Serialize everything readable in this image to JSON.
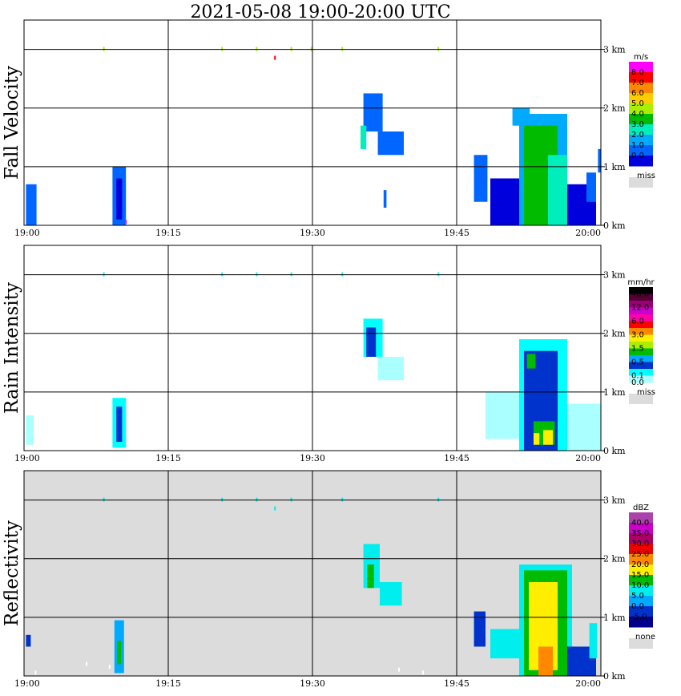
{
  "title": "2021-05-08   19:00-20:00 UTC",
  "chart_data": [
    {
      "type": "heatmap",
      "ylabel": "Fall Velocity",
      "background": "#ffffff",
      "x_ticks": [
        "19:00",
        "19:15",
        "19:30",
        "19:45",
        "20:00"
      ],
      "y_ticks": [
        "0 km",
        "1 km",
        "2 km",
        "3 km"
      ],
      "xlim_minutes": [
        0,
        60
      ],
      "ylim_km": [
        0,
        3.5
      ],
      "colorbar": {
        "unit": "m/s",
        "labels": [
          "8.0",
          "7.0",
          "6.0",
          "5.0",
          "4.0",
          "3.0",
          "2.0",
          "1.0",
          "0.0"
        ],
        "colors": [
          "#ff00ff",
          "#ff0000",
          "#ff8800",
          "#ffcc00",
          "#aaee00",
          "#00bb00",
          "#00eebb",
          "#00aaff",
          "#0066ff",
          "#0000dd"
        ],
        "missing_label": "miss",
        "missing_color": "#dcdcdc"
      },
      "echoes": [
        {
          "t0": 0.2,
          "t1": 1.3,
          "h0": 0.0,
          "h1": 0.7,
          "color": "#0066ff"
        },
        {
          "t0": 9.2,
          "t1": 10.6,
          "h0": 0.0,
          "h1": 1.0,
          "color": "#0066ff"
        },
        {
          "t0": 9.6,
          "t1": 10.2,
          "h0": 0.1,
          "h1": 0.8,
          "color": "#0000dd"
        },
        {
          "t0": 35.3,
          "t1": 37.3,
          "h0": 1.6,
          "h1": 2.25,
          "color": "#0066ff"
        },
        {
          "t0": 35.0,
          "t1": 35.6,
          "h0": 1.3,
          "h1": 1.7,
          "color": "#00eebb"
        },
        {
          "t0": 36.8,
          "t1": 39.5,
          "h0": 1.2,
          "h1": 1.6,
          "color": "#0066ff"
        },
        {
          "t0": 37.4,
          "t1": 37.7,
          "h0": 0.3,
          "h1": 0.6,
          "color": "#0066ff"
        },
        {
          "t0": 46.8,
          "t1": 48.2,
          "h0": 0.4,
          "h1": 1.2,
          "color": "#0066ff"
        },
        {
          "t0": 48.5,
          "t1": 53.5,
          "h0": 0.0,
          "h1": 0.8,
          "color": "#0000dd"
        },
        {
          "t0": 52.5,
          "t1": 59.5,
          "h0": 0.0,
          "h1": 0.7,
          "color": "#0000dd"
        },
        {
          "t0": 51.5,
          "t1": 56.5,
          "h0": 0.0,
          "h1": 1.9,
          "color": "#00aaff"
        },
        {
          "t0": 52.0,
          "t1": 55.5,
          "h0": 0.0,
          "h1": 1.7,
          "color": "#00bb00"
        },
        {
          "t0": 54.5,
          "t1": 56.5,
          "h0": 0.0,
          "h1": 1.2,
          "color": "#00eebb"
        },
        {
          "t0": 50.8,
          "t1": 52.6,
          "h0": 1.7,
          "h1": 2.0,
          "color": "#00aaff"
        },
        {
          "t0": 58.5,
          "t1": 59.5,
          "h0": 0.4,
          "h1": 0.9,
          "color": "#0066ff"
        },
        {
          "t0": 59.7,
          "t1": 60.0,
          "h0": 0.9,
          "h1": 1.3,
          "color": "#0066ff"
        }
      ],
      "speckles": [
        {
          "t": 8.3,
          "h": 3.0,
          "color": "#aaee00"
        },
        {
          "t": 20.6,
          "h": 3.0,
          "color": "#aaee00"
        },
        {
          "t": 24.2,
          "h": 3.0,
          "color": "#aaee00"
        },
        {
          "t": 27.8,
          "h": 3.0,
          "color": "#aaee00"
        },
        {
          "t": 29.9,
          "h": 3.0,
          "color": "#aaee00"
        },
        {
          "t": 33.1,
          "h": 3.0,
          "color": "#aaee00"
        },
        {
          "t": 43.1,
          "h": 3.0,
          "color": "#aaee00"
        },
        {
          "t": 26.1,
          "h": 2.85,
          "color": "#ff0000"
        },
        {
          "t": 10.6,
          "h": 0.05,
          "color": "#ff00ff"
        }
      ]
    },
    {
      "type": "heatmap",
      "ylabel": "Rain Intensity",
      "background": "#ffffff",
      "x_ticks": [
        "19:00",
        "19:15",
        "19:30",
        "19:45",
        "20:00"
      ],
      "y_ticks": [
        "0 km",
        "1 km",
        "2 km",
        "3 km"
      ],
      "xlim_minutes": [
        0,
        60
      ],
      "ylim_km": [
        0,
        3.5
      ],
      "colorbar": {
        "unit": "mm/hr",
        "labels": [
          "48.0",
          "12.0",
          "6.0",
          "3.0",
          "1.5",
          "0.5",
          "0.1",
          "0.0"
        ],
        "label_rows": [
          0,
          2,
          4,
          6,
          8,
          10,
          12,
          13
        ],
        "colors": [
          "#000000",
          "#550033",
          "#990077",
          "#cc00cc",
          "#ff00aa",
          "#ff0000",
          "#ff8800",
          "#ffee00",
          "#aaee00",
          "#00bb00",
          "#00aaff",
          "#0033cc",
          "#00ffff",
          "#aaffff"
        ],
        "missing_label": "miss",
        "missing_color": "#dcdcdc"
      },
      "echoes": [
        {
          "t0": 0.2,
          "t1": 1.0,
          "h0": 0.1,
          "h1": 0.6,
          "color": "#aaffff"
        },
        {
          "t0": 9.2,
          "t1": 10.6,
          "h0": 0.05,
          "h1": 0.9,
          "color": "#00ffff"
        },
        {
          "t0": 9.6,
          "t1": 10.2,
          "h0": 0.15,
          "h1": 0.75,
          "color": "#0033cc"
        },
        {
          "t0": 35.3,
          "t1": 37.3,
          "h0": 1.6,
          "h1": 2.25,
          "color": "#00ffff"
        },
        {
          "t0": 35.6,
          "t1": 36.6,
          "h0": 1.6,
          "h1": 2.1,
          "color": "#0033cc"
        },
        {
          "t0": 36.8,
          "t1": 39.5,
          "h0": 1.2,
          "h1": 1.6,
          "color": "#aaffff"
        },
        {
          "t0": 48.0,
          "t1": 53.0,
          "h0": 0.2,
          "h1": 1.0,
          "color": "#aaffff"
        },
        {
          "t0": 53.0,
          "t1": 60.0,
          "h0": 0.0,
          "h1": 0.8,
          "color": "#aaffff"
        },
        {
          "t0": 51.5,
          "t1": 56.5,
          "h0": 0.0,
          "h1": 1.9,
          "color": "#00ffff"
        },
        {
          "t0": 52.0,
          "t1": 55.5,
          "h0": 0.0,
          "h1": 1.7,
          "color": "#0033cc"
        },
        {
          "t0": 52.3,
          "t1": 53.2,
          "h0": 1.4,
          "h1": 1.65,
          "color": "#00bb00"
        },
        {
          "t0": 53.0,
          "t1": 55.2,
          "h0": 0.1,
          "h1": 0.5,
          "color": "#00bb00"
        },
        {
          "t0": 54.0,
          "t1": 55.0,
          "h0": 0.1,
          "h1": 0.35,
          "color": "#ffee00"
        },
        {
          "t0": 53.0,
          "t1": 53.6,
          "h0": 0.1,
          "h1": 0.3,
          "color": "#ffee00"
        }
      ],
      "speckles": [
        {
          "t": 8.3,
          "h": 3.0,
          "color": "#00ffff"
        },
        {
          "t": 20.6,
          "h": 3.0,
          "color": "#00ffff"
        },
        {
          "t": 24.2,
          "h": 3.0,
          "color": "#00ffff"
        },
        {
          "t": 27.8,
          "h": 3.0,
          "color": "#00ffff"
        },
        {
          "t": 33.1,
          "h": 3.0,
          "color": "#00ffff"
        },
        {
          "t": 43.1,
          "h": 3.0,
          "color": "#00ffff"
        }
      ]
    },
    {
      "type": "heatmap",
      "ylabel": "Reflectivity",
      "background": "#dcdcdc",
      "x_ticks": [
        "19:00",
        "19:15",
        "19:30",
        "19:45",
        "20:00"
      ],
      "y_ticks": [
        "0 km",
        "1 km",
        "2 km",
        "3 km"
      ],
      "xlim_minutes": [
        0,
        60
      ],
      "ylim_km": [
        0,
        3.5
      ],
      "colorbar": {
        "unit": "dBZ",
        "labels": [
          "40.0",
          "35.0",
          "30.0",
          "25.0",
          "20.0",
          "15.0",
          "10.0",
          "5.0",
          "0.0",
          "-5.0"
        ],
        "colors": [
          "#aa44aa",
          "#cc00cc",
          "#aa0066",
          "#ee0000",
          "#ff8800",
          "#ffee00",
          "#00bb00",
          "#00eeee",
          "#00aaff",
          "#0033cc",
          "#000088"
        ],
        "missing_label": "none",
        "missing_color": "#dcdcdc"
      },
      "echoes": [
        {
          "t0": 0.2,
          "t1": 0.7,
          "h0": 0.5,
          "h1": 0.7,
          "color": "#0033cc"
        },
        {
          "t0": 9.4,
          "t1": 10.4,
          "h0": 0.05,
          "h1": 0.95,
          "color": "#00aaff"
        },
        {
          "t0": 9.7,
          "t1": 10.1,
          "h0": 0.2,
          "h1": 0.6,
          "color": "#00bb00"
        },
        {
          "t0": 35.3,
          "t1": 37.0,
          "h0": 1.5,
          "h1": 2.25,
          "color": "#00eeee"
        },
        {
          "t0": 35.7,
          "t1": 36.4,
          "h0": 1.5,
          "h1": 1.9,
          "color": "#00bb00"
        },
        {
          "t0": 37.0,
          "t1": 39.3,
          "h0": 1.2,
          "h1": 1.6,
          "color": "#00eeee"
        },
        {
          "t0": 46.8,
          "t1": 48.0,
          "h0": 0.5,
          "h1": 1.1,
          "color": "#0033cc"
        },
        {
          "t0": 48.5,
          "t1": 52.0,
          "h0": 0.3,
          "h1": 0.8,
          "color": "#00eeee"
        },
        {
          "t0": 51.5,
          "t1": 57.0,
          "h0": 0.0,
          "h1": 1.9,
          "color": "#00eeee"
        },
        {
          "t0": 52.0,
          "t1": 56.5,
          "h0": 0.0,
          "h1": 1.8,
          "color": "#00bb00"
        },
        {
          "t0": 52.5,
          "t1": 55.5,
          "h0": 0.1,
          "h1": 1.6,
          "color": "#ffee00"
        },
        {
          "t0": 53.5,
          "t1": 55.0,
          "h0": 0.0,
          "h1": 0.5,
          "color": "#ff8800"
        },
        {
          "t0": 56.5,
          "t1": 59.5,
          "h0": 0.0,
          "h1": 0.5,
          "color": "#0033cc"
        },
        {
          "t0": 58.8,
          "t1": 59.6,
          "h0": 0.3,
          "h1": 0.9,
          "color": "#00eeee"
        }
      ],
      "speckles": [
        {
          "t": 8.3,
          "h": 3.0,
          "color": "#00eeee"
        },
        {
          "t": 20.6,
          "h": 3.0,
          "color": "#00eeee"
        },
        {
          "t": 24.2,
          "h": 3.0,
          "color": "#00eeee"
        },
        {
          "t": 26.1,
          "h": 2.85,
          "color": "#00eeee"
        },
        {
          "t": 27.8,
          "h": 3.0,
          "color": "#00eeee"
        },
        {
          "t": 33.1,
          "h": 3.0,
          "color": "#00eeee"
        },
        {
          "t": 43.1,
          "h": 3.0,
          "color": "#00eeee"
        },
        {
          "t": 1.2,
          "h": 0.05,
          "color": "#ffffff"
        },
        {
          "t": 6.5,
          "h": 0.2,
          "color": "#ffffff"
        },
        {
          "t": 8.9,
          "h": 0.15,
          "color": "#ffffff"
        },
        {
          "t": 39.0,
          "h": 0.1,
          "color": "#ffffff"
        },
        {
          "t": 41.5,
          "h": 0.05,
          "color": "#ffffff"
        }
      ]
    }
  ]
}
